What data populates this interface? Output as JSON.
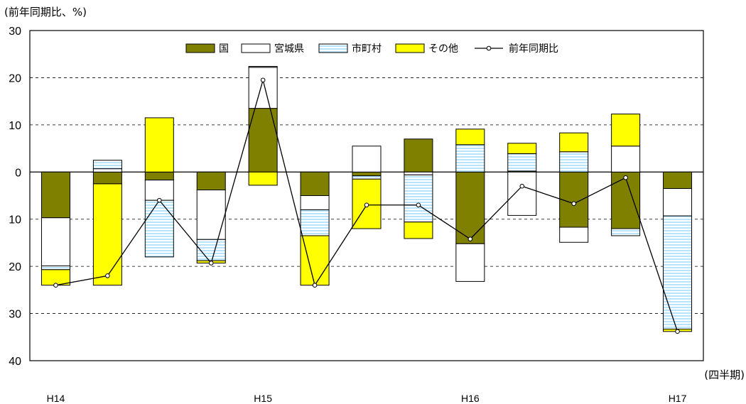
{
  "chart_data": {
    "type": "bar",
    "subtype": "stacked-bar-with-line",
    "ylabel": "(前年同期比、%)",
    "xlabel": "(四半期)",
    "ylim": [
      -40,
      30
    ],
    "yticks": [
      30,
      20,
      10,
      0,
      -10,
      -20,
      -30,
      -40
    ],
    "ytick_labels": [
      "30",
      "20",
      "10",
      "0",
      "10",
      "20",
      "30",
      "40"
    ],
    "grid": "dashed-horizontal",
    "legend_position": "top",
    "category_labels": [
      "H14",
      "",
      "",
      "",
      "H15",
      "",
      "",
      "",
      "H16",
      "",
      "",
      "",
      "H17"
    ],
    "colors": {
      "国": "#808000",
      "宮城県": "#ffffff",
      "市町村": "#ccecff",
      "その他": "#ffff00",
      "line": "#000000"
    },
    "series": [
      {
        "name": "国",
        "values": [
          -9.7,
          -2.5,
          -1.7,
          -3.8,
          13.5,
          -5.0,
          -0.8,
          7.0,
          -15.2,
          0.2,
          -11.7,
          -12.0,
          -3.5
        ]
      },
      {
        "name": "宮城県",
        "values": [
          -10.2,
          0.7,
          -4.3,
          -10.5,
          8.7,
          -3.0,
          5.5,
          -0.6,
          -8.0,
          -9.2,
          -3.2,
          5.5,
          -5.8
        ]
      },
      {
        "name": "市町村",
        "values": [
          -0.8,
          1.8,
          -12.0,
          -4.5,
          0.2,
          -5.5,
          -0.7,
          -10.0,
          5.8,
          3.7,
          4.3,
          -1.5,
          -24.0
        ]
      },
      {
        "name": "その他",
        "values": [
          -3.3,
          -21.5,
          11.5,
          -0.5,
          -2.8,
          -10.5,
          -10.5,
          -3.5,
          3.3,
          2.2,
          4.0,
          6.8,
          -0.5
        ]
      }
    ],
    "line_series": {
      "name": "前年同期比",
      "values": [
        -24.0,
        -22.0,
        -6.0,
        -19.3,
        19.5,
        -24.0,
        -7.0,
        -7.0,
        -14.2,
        -3.0,
        -6.7,
        -1.2,
        -33.8
      ]
    }
  }
}
